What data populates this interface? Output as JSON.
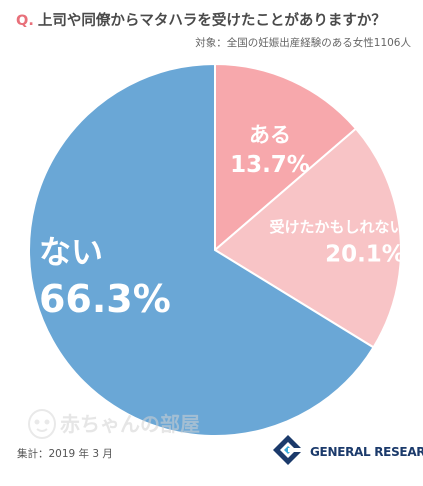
{
  "question": {
    "prefix": "Q.",
    "text": "上司や同僚からマタハラを受けたことがありますか？"
  },
  "subject": "対象：全国の妊娠出産経験のある女性1106人",
  "survey_date": "集計：2019 年 3 月",
  "watermark": {
    "text": "赤ちゃんの部屋"
  },
  "brand": {
    "name": "GENERAL RESEARCH",
    "icon": "general-research-logo"
  },
  "chart_data": {
    "type": "pie",
    "start": "12 o'clock",
    "direction": "clockwise",
    "slices": [
      {
        "label": "ある",
        "value": 13.7,
        "value_label": "13.7%",
        "color": "#f7a8ac"
      },
      {
        "label": "受けたかもしれない",
        "value": 20.1,
        "value_label": "20.1%",
        "color": "#f8c4c6"
      },
      {
        "label": "ない",
        "value": 66.3,
        "value_label": "66.3%",
        "color": "#6aa7d6"
      }
    ]
  }
}
